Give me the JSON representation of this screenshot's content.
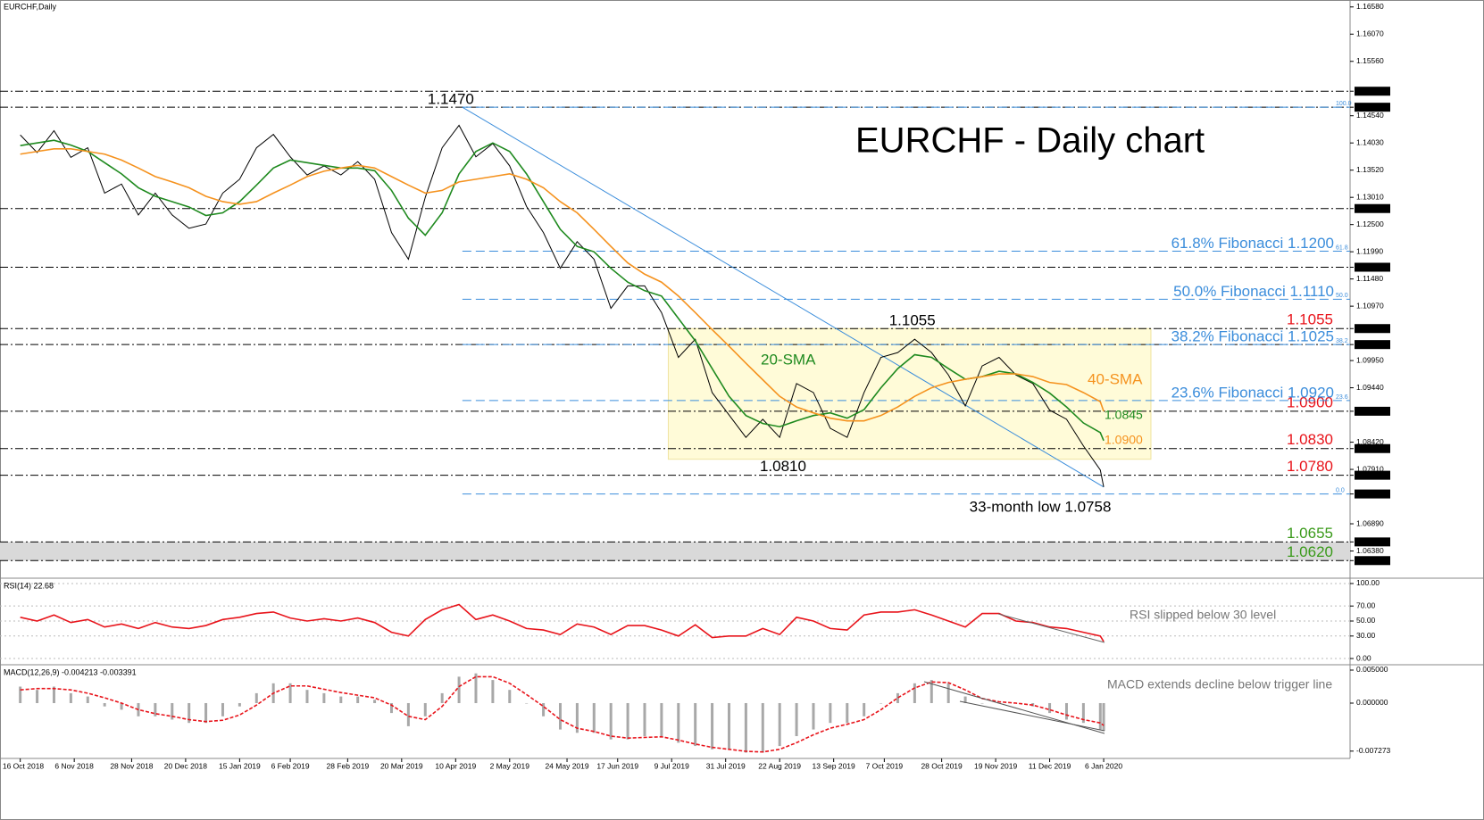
{
  "chart_data": [
    {
      "type": "line",
      "header": "EURCHF,Daily",
      "title": "EURCHF - Daily chart",
      "x": [
        0,
        5,
        10,
        15,
        20,
        25,
        30,
        35,
        40,
        45,
        50,
        55,
        60,
        65,
        70,
        75,
        80,
        85,
        90,
        95,
        100,
        105,
        110,
        115,
        120,
        125,
        130,
        135,
        140,
        145,
        150,
        155,
        160,
        165,
        170,
        175,
        180,
        185,
        190,
        195,
        200,
        205,
        210,
        215,
        220,
        225,
        230,
        235,
        240,
        245,
        250,
        255,
        260,
        265,
        270,
        275,
        280,
        285,
        290,
        295,
        300,
        305,
        310,
        315,
        320,
        321
      ],
      "xlim": [
        -6,
        394
      ],
      "ylim": [
        1.0587,
        1.1671
      ],
      "yticks": [
        {
          "value": 1.1658,
          "label": "1.16580"
        },
        {
          "value": 1.1607,
          "label": "1.16070"
        },
        {
          "value": 1.1556,
          "label": "1.15560"
        },
        {
          "value": 1.15,
          "label": "1.15000",
          "boxed": true
        },
        {
          "value": 1.147,
          "label": "1.14700",
          "boxed": true
        },
        {
          "value": 1.1454,
          "label": "1.14540"
        },
        {
          "value": 1.1403,
          "label": "1.14030"
        },
        {
          "value": 1.1352,
          "label": "1.13520"
        },
        {
          "value": 1.1301,
          "label": "1.13010"
        },
        {
          "value": 1.128,
          "label": "1.12800",
          "boxed": true
        },
        {
          "value": 1.125,
          "label": "1.12500"
        },
        {
          "value": 1.1199,
          "label": "1.11990"
        },
        {
          "value": 1.117,
          "label": "1.11700",
          "boxed": true
        },
        {
          "value": 1.1148,
          "label": "1.11480"
        },
        {
          "value": 1.1097,
          "label": "1.10970"
        },
        {
          "value": 1.1055,
          "label": "1.10550",
          "boxed": true
        },
        {
          "value": 1.1025,
          "label": "1.10250",
          "boxed": true
        },
        {
          "value": 1.0995,
          "label": "1.09950"
        },
        {
          "value": 1.0944,
          "label": "1.09440"
        },
        {
          "value": 1.09,
          "label": "1.09000",
          "boxed": true
        },
        {
          "value": 1.0842,
          "label": "1.08420"
        },
        {
          "value": 1.083,
          "label": "1.08300",
          "boxed": true
        },
        {
          "value": 1.0791,
          "label": "1.07910"
        },
        {
          "value": 1.078,
          "label": "1.07800",
          "boxed": true
        },
        {
          "value": 1.07449,
          "label": "1.07449",
          "boxed": true
        },
        {
          "value": 1.0689,
          "label": "1.06890"
        },
        {
          "value": 1.0655,
          "label": "1.06550",
          "boxed": true
        },
        {
          "value": 1.0638,
          "label": "1.06380"
        },
        {
          "value": 1.062,
          "label": "1.06200",
          "boxed": true
        }
      ],
      "series": [
        {
          "color": "#000000",
          "values": [
            1.1418,
            1.1385,
            1.1426,
            1.1376,
            1.1394,
            1.1309,
            1.1326,
            1.1268,
            1.1309,
            1.1268,
            1.1243,
            1.1251,
            1.1309,
            1.1335,
            1.1394,
            1.1419,
            1.1377,
            1.1343,
            1.136,
            1.1343,
            1.1368,
            1.1335,
            1.1235,
            1.1185,
            1.1301,
            1.1394,
            1.1436,
            1.1377,
            1.1402,
            1.136,
            1.1284,
            1.1235,
            1.1168,
            1.1218,
            1.1185,
            1.1093,
            1.1135,
            1.1135,
            1.1085,
            1.1001,
            1.1035,
            1.0935,
            1.0893,
            1.0851,
            1.0885,
            1.0851,
            1.0952,
            1.0935,
            1.0868,
            1.0851,
            1.0935,
            1.1001,
            1.101,
            1.1035,
            1.101,
            1.0968,
            1.091,
            1.0985,
            1.1001,
            1.0968,
            1.0952,
            1.0902,
            1.0885,
            1.0835,
            1.079,
            1.0758
          ]
        },
        {
          "name": "20-SMA",
          "end_label": "1.0845",
          "color": "#1f8a1f",
          "values": [
            1.1398,
            1.1403,
            1.1408,
            1.1399,
            1.1387,
            1.1366,
            1.1345,
            1.1319,
            1.1303,
            1.1293,
            1.1283,
            1.1267,
            1.1272,
            1.1293,
            1.1324,
            1.1356,
            1.1371,
            1.1366,
            1.1361,
            1.1356,
            1.1356,
            1.1351,
            1.1314,
            1.1262,
            1.123,
            1.1272,
            1.1345,
            1.1387,
            1.1403,
            1.1387,
            1.1345,
            1.1293,
            1.1241,
            1.1209,
            1.1199,
            1.1168,
            1.1142,
            1.1126,
            1.1116,
            1.1074,
            1.1032,
            1.098,
            1.0928,
            1.0892,
            1.0877,
            1.0871,
            1.0882,
            1.0892,
            1.0897,
            1.0887,
            1.0903,
            1.0944,
            1.098,
            1.1006,
            1.1001,
            1.098,
            1.096,
            1.0965,
            1.0975,
            1.097,
            1.0954,
            1.0934,
            1.0908,
            1.0878,
            1.086,
            1.0845
          ]
        },
        {
          "name": "40-SMA",
          "end_label": "1.0900",
          "color": "#f5921e",
          "values": [
            1.1382,
            1.1387,
            1.1392,
            1.1392,
            1.1387,
            1.1382,
            1.1371,
            1.1356,
            1.134,
            1.133,
            1.1319,
            1.1303,
            1.1293,
            1.1288,
            1.1293,
            1.1309,
            1.1324,
            1.134,
            1.135,
            1.1356,
            1.1361,
            1.1356,
            1.134,
            1.1324,
            1.1309,
            1.1314,
            1.133,
            1.1335,
            1.134,
            1.1345,
            1.1335,
            1.1319,
            1.1293,
            1.1272,
            1.1241,
            1.1209,
            1.1178,
            1.1157,
            1.1142,
            1.1116,
            1.1085,
            1.1053,
            1.1022,
            1.099,
            1.0959,
            1.0928,
            1.0908,
            1.0897,
            1.0887,
            1.0882,
            1.0882,
            1.0892,
            1.0908,
            1.0928,
            1.0944,
            1.0954,
            1.096,
            1.0965,
            1.097,
            1.097,
            1.0965,
            1.0954,
            1.095,
            1.0935,
            1.0918,
            1.09
          ]
        }
      ],
      "levels": [
        1.15,
        1.147,
        1.128,
        1.117,
        {
          "value": 1.1055,
          "label": "1.1055",
          "color": "#e8141b"
        },
        1.1025,
        {
          "value": 1.09,
          "label": "1.0900",
          "color": "#e8141b"
        },
        {
          "value": 1.083,
          "label": "1.0830",
          "color": "#e8141b"
        },
        {
          "value": 1.078,
          "label": "1.0780",
          "color": "#e8141b"
        },
        {
          "value": 1.0655,
          "label": "1.0655",
          "color": "#3a9a1a"
        },
        {
          "value": 1.062,
          "label": "1.0620",
          "color": "#3a9a1a"
        }
      ],
      "zone": [
        1.0655,
        1.062
      ],
      "fib_start": 131,
      "fib_levels": [
        {
          "value": 1.147,
          "tag": "100.0"
        },
        {
          "value": 1.12,
          "tag": "61.8",
          "label": "61.8% Fibonacci 1.1200"
        },
        {
          "value": 1.111,
          "tag": "50.0",
          "label": "50.0% Fibonacci 1.1110"
        },
        {
          "value": 1.1025,
          "tag": "38.2",
          "label": "38.2% Fibonacci 1.1025"
        },
        {
          "value": 1.092,
          "tag": "23.6",
          "label": "23.6% Fibonacci 1.0920"
        },
        {
          "value": 1.07449,
          "tag": "0.0"
        }
      ],
      "trendline": {
        "x": [
          131,
          321
        ],
        "y": [
          1.147,
          1.0758
        ]
      },
      "range_box": {
        "x": [
          192,
          335
        ],
        "y": [
          1.081,
          1.1055
        ]
      },
      "annotations": [
        {
          "text": "1.1470",
          "x": 131,
          "y": 1.147
        },
        {
          "text": "1.1055",
          "x": 268,
          "y": 1.1055
        },
        {
          "text": "1.0810",
          "x": 226,
          "y": 1.081
        },
        {
          "text": "33-month low 1.0758",
          "x": 321,
          "y": 1.0758
        }
      ]
    },
    {
      "type": "line",
      "header": "RSI(14) 22.68",
      "note": "RSI slipped below 30 level",
      "x": [
        0,
        5,
        10,
        15,
        20,
        25,
        30,
        35,
        40,
        45,
        50,
        55,
        60,
        65,
        70,
        75,
        80,
        85,
        90,
        95,
        100,
        105,
        110,
        115,
        120,
        125,
        130,
        135,
        140,
        145,
        150,
        155,
        160,
        165,
        170,
        175,
        180,
        185,
        190,
        195,
        200,
        205,
        210,
        215,
        220,
        225,
        230,
        235,
        240,
        245,
        250,
        255,
        260,
        265,
        270,
        275,
        280,
        285,
        290,
        295,
        300,
        305,
        310,
        315,
        320,
        321
      ],
      "xlim": [
        -6,
        394
      ],
      "ylim": [
        -8.3,
        107.1
      ],
      "grid": true,
      "yticks": [
        {
          "value": 100,
          "label": "100.00"
        },
        {
          "value": 70,
          "label": "70.00"
        },
        {
          "value": 50,
          "label": "50.00"
        },
        {
          "value": 30,
          "label": "30.00"
        },
        {
          "value": 0,
          "label": "0.00"
        }
      ],
      "series": [
        {
          "color": "#e8141b",
          "values": [
            55,
            50,
            58,
            48,
            52,
            42,
            46,
            40,
            48,
            42,
            40,
            44,
            52,
            55,
            60,
            62,
            54,
            50,
            53,
            50,
            54,
            48,
            35,
            30,
            52,
            65,
            72,
            52,
            58,
            50,
            40,
            38,
            32,
            46,
            42,
            32,
            44,
            44,
            38,
            30,
            45,
            28,
            30,
            30,
            40,
            32,
            55,
            50,
            40,
            38,
            58,
            62,
            62,
            65,
            58,
            50,
            42,
            60,
            60,
            50,
            48,
            42,
            40,
            35,
            30,
            22.68
          ]
        }
      ]
    },
    {
      "type": "bar",
      "header": "MACD(12,26,9) -0.004213 -0.003391",
      "note": "MACD extends decline below trigger line",
      "x": [
        0,
        5,
        10,
        15,
        20,
        25,
        30,
        35,
        40,
        45,
        50,
        55,
        60,
        65,
        70,
        75,
        80,
        85,
        90,
        95,
        100,
        105,
        110,
        115,
        120,
        125,
        130,
        135,
        140,
        145,
        150,
        155,
        160,
        165,
        170,
        175,
        180,
        185,
        190,
        195,
        200,
        205,
        210,
        215,
        220,
        225,
        230,
        235,
        240,
        245,
        250,
        255,
        260,
        265,
        270,
        275,
        280,
        285,
        290,
        295,
        300,
        305,
        310,
        315,
        320,
        321
      ],
      "xlim": [
        -6,
        394
      ],
      "ylim": [
        -0.00838,
        0.00581
      ],
      "yticks": [
        {
          "value": 0.005,
          "label": "0.005000"
        },
        {
          "value": 0,
          "label": "0.000000"
        },
        {
          "value": -0.007273,
          "label": "-0.007273"
        }
      ],
      "xticks": [
        {
          "value": 0,
          "label": "16 Oct 2018"
        },
        {
          "value": 16,
          "label": "6 Nov 2018"
        },
        {
          "value": 33,
          "label": "28 Nov 2018"
        },
        {
          "value": 49,
          "label": "20 Dec 2018"
        },
        {
          "value": 65,
          "label": "15 Jan 2019"
        },
        {
          "value": 80,
          "label": "6 Feb 2019"
        },
        {
          "value": 97,
          "label": "28 Feb 2019"
        },
        {
          "value": 113,
          "label": "20 Mar 2019"
        },
        {
          "value": 129,
          "label": "10 Apr 2019"
        },
        {
          "value": 145,
          "label": "2 May 2019"
        },
        {
          "value": 162,
          "label": "24 May 2019"
        },
        {
          "value": 177,
          "label": "17 Jun 2019"
        },
        {
          "value": 193,
          "label": "9 Jul 2019"
        },
        {
          "value": 209,
          "label": "31 Jul 2019"
        },
        {
          "value": 225,
          "label": "22 Aug 2019"
        },
        {
          "value": 241,
          "label": "13 Sep 2019"
        },
        {
          "value": 256,
          "label": "7 Oct 2019"
        },
        {
          "value": 273,
          "label": "28 Oct 2019"
        },
        {
          "value": 289,
          "label": "19 Nov 2019"
        },
        {
          "value": 305,
          "label": "11 Dec 2019"
        },
        {
          "value": 321,
          "label": "6 Jan 2020"
        }
      ],
      "series": [
        {
          "type": "bar",
          "color": "#a8a8a8",
          "values": [
            0.0025,
            0.002,
            0.0025,
            0.0015,
            0.001,
            -0.0005,
            -0.001,
            -0.002,
            -0.002,
            -0.0025,
            -0.003,
            -0.003,
            -0.002,
            -0.0005,
            0.0015,
            0.003,
            0.003,
            0.002,
            0.0015,
            0.001,
            0.001,
            0.0005,
            -0.0015,
            -0.0035,
            -0.002,
            0.0015,
            0.004,
            0.0045,
            0.0035,
            0.002,
            0,
            -0.002,
            -0.004,
            -0.0045,
            -0.0045,
            -0.0055,
            -0.0055,
            -0.005,
            -0.005,
            -0.006,
            -0.0065,
            -0.007,
            -0.007,
            -0.0075,
            -0.0075,
            -0.0065,
            -0.005,
            -0.004,
            -0.003,
            -0.003,
            -0.002,
            0,
            0.0015,
            0.003,
            0.0035,
            0.003,
            0.001,
            0,
            0,
            0,
            -0.0005,
            -0.0015,
            -0.0025,
            -0.003,
            -0.004,
            -0.004213
          ]
        },
        {
          "type": "line",
          "color": "#e8141b",
          "values": [
            0.002,
            0.0022,
            0.0022,
            0.002,
            0.0015,
            0.0008,
            0,
            -0.001,
            -0.0016,
            -0.002,
            -0.0025,
            -0.0028,
            -0.0026,
            -0.0018,
            -0.0003,
            0.0015,
            0.0026,
            0.0026,
            0.0021,
            0.0016,
            0.0012,
            0.0008,
            -0.0003,
            -0.002,
            -0.0025,
            -0.0005,
            0.0025,
            0.004,
            0.004,
            0.003,
            0.0013,
            -0.0005,
            -0.0025,
            -0.0038,
            -0.0043,
            -0.005,
            -0.0053,
            -0.0052,
            -0.0051,
            -0.0056,
            -0.0062,
            -0.0067,
            -0.007,
            -0.0073,
            -0.0074,
            -0.007,
            -0.006,
            -0.0048,
            -0.0038,
            -0.0032,
            -0.0025,
            -0.001,
            0.0008,
            0.0023,
            0.0032,
            0.0031,
            0.002,
            0.0007,
            0.0002,
            0,
            -0.0003,
            -0.001,
            -0.0018,
            -0.0025,
            -0.003,
            -0.003391
          ]
        }
      ]
    }
  ]
}
